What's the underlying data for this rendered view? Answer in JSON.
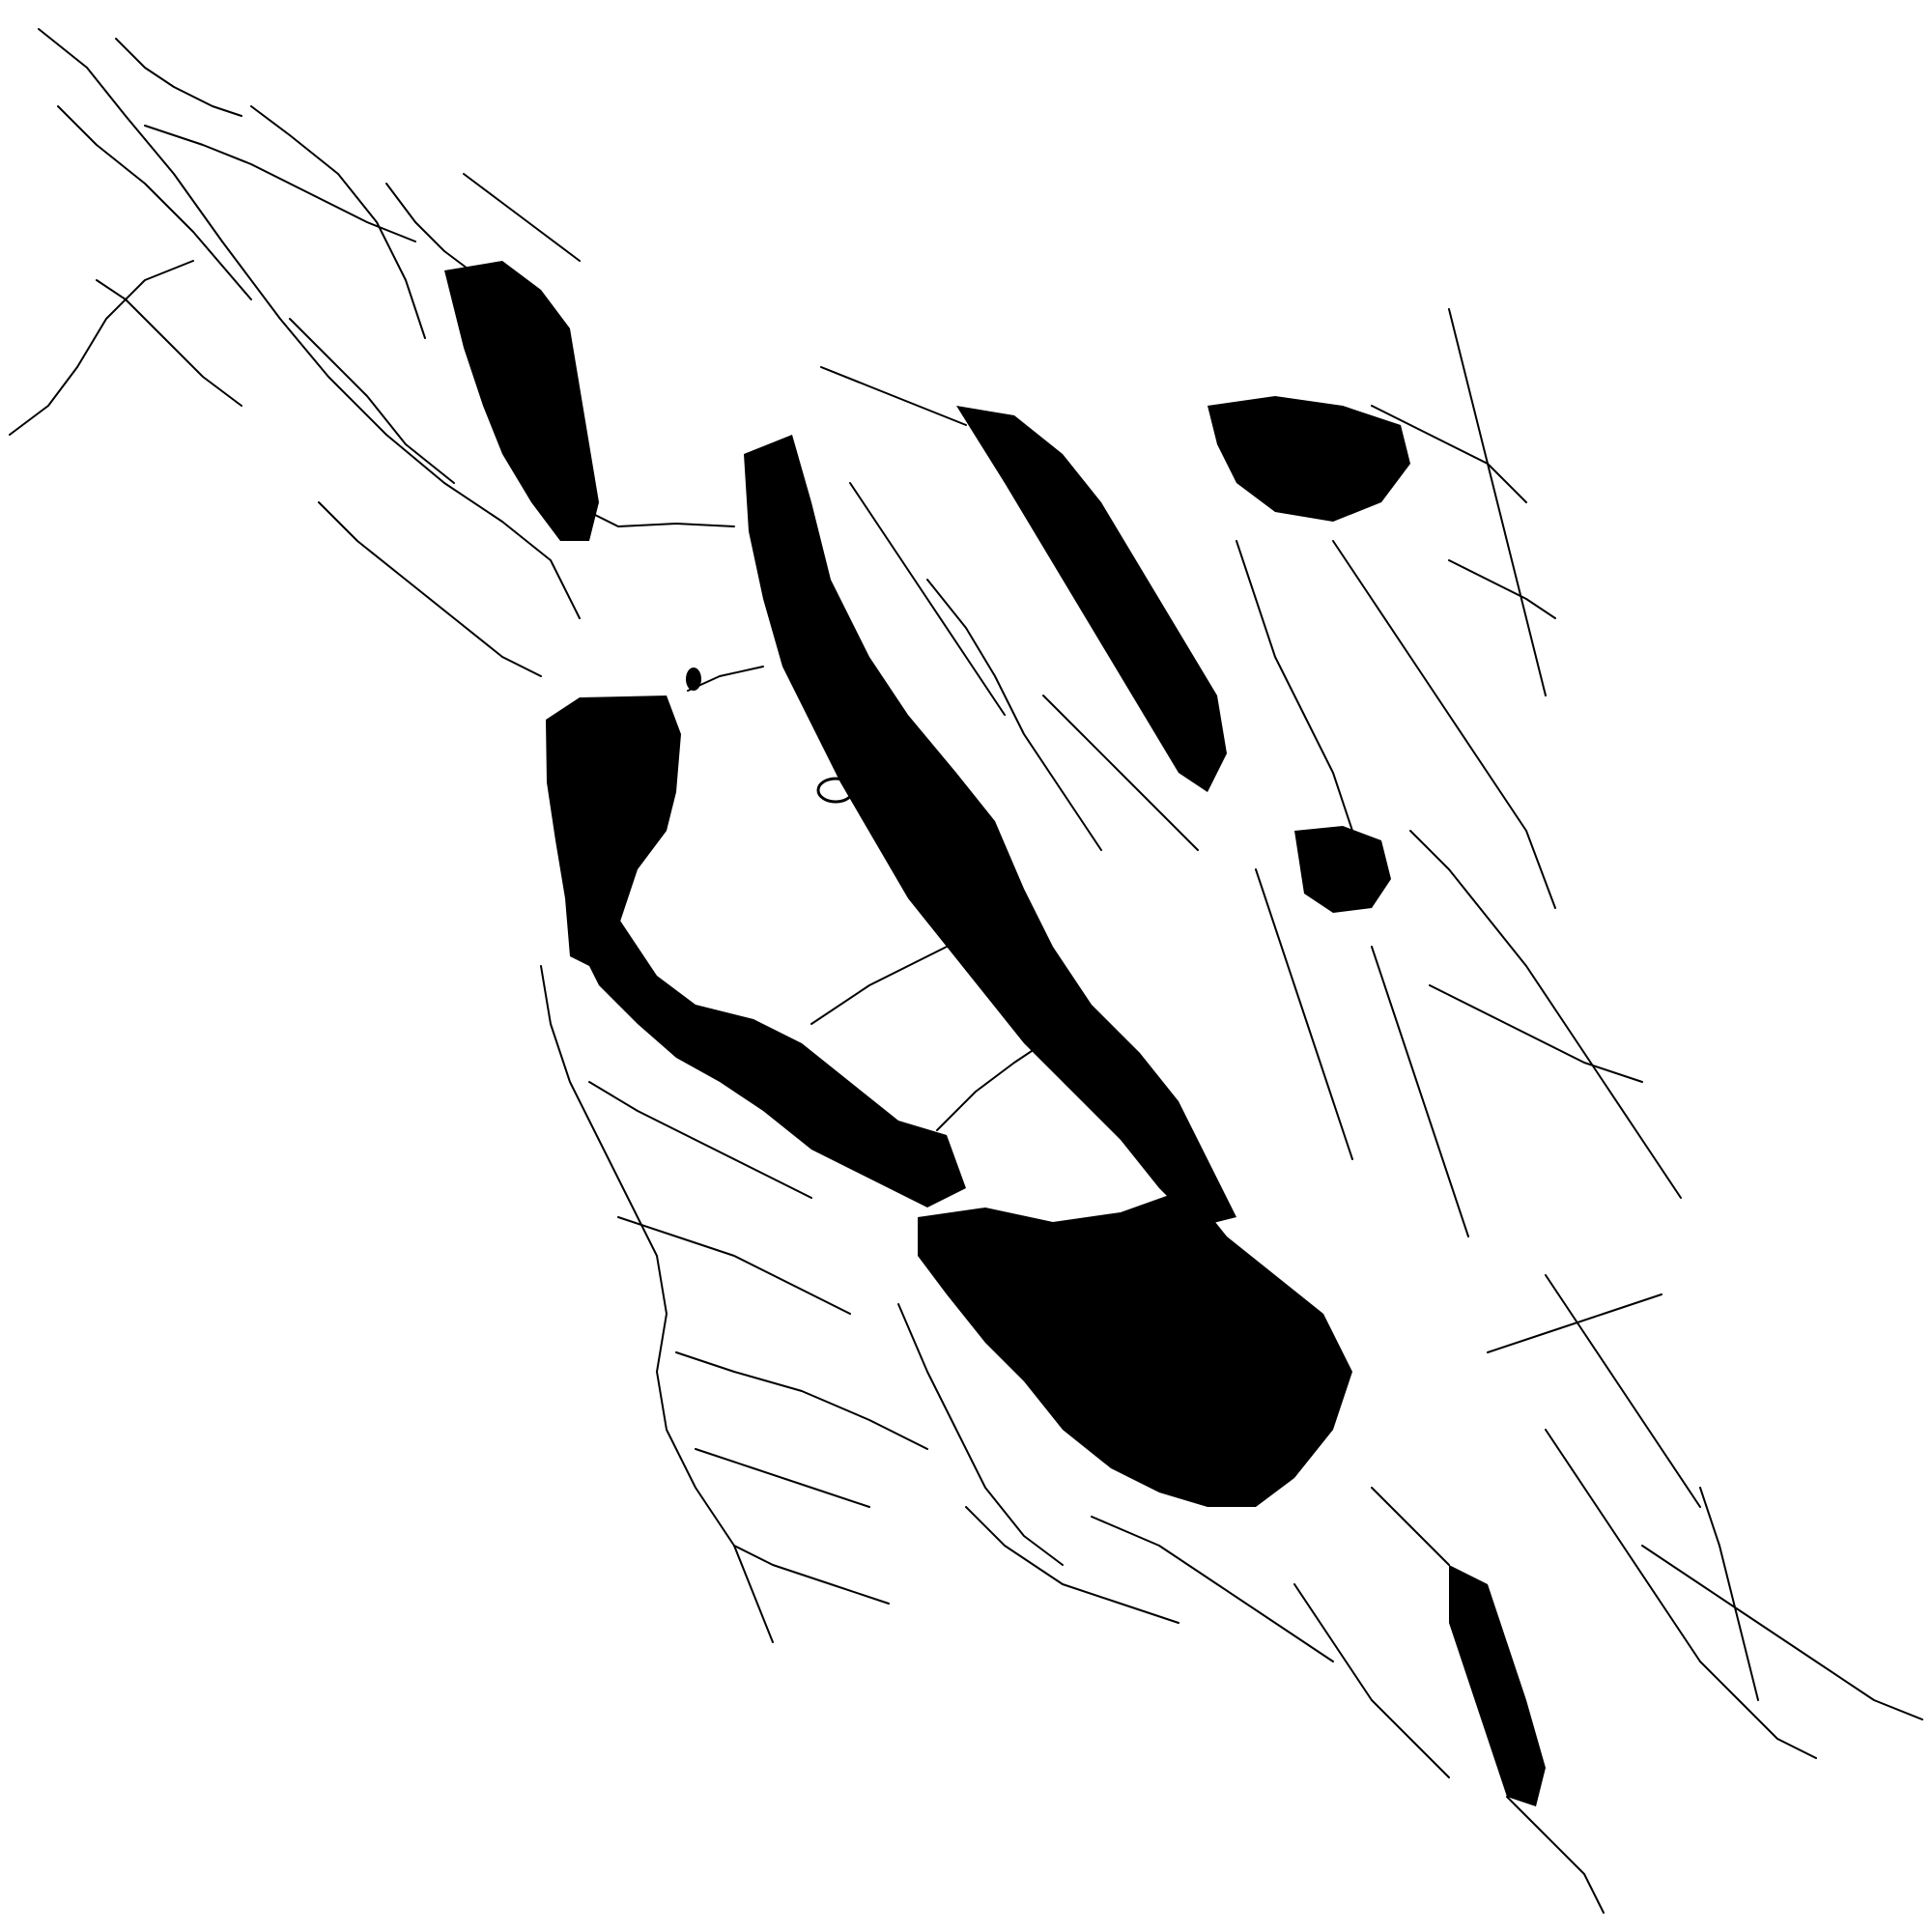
{
  "map": {
    "kind": "road-network",
    "region_shape": "bay-shaped-road-network",
    "background_color": "#ffffff",
    "line_color": "#000000",
    "labels": []
  }
}
